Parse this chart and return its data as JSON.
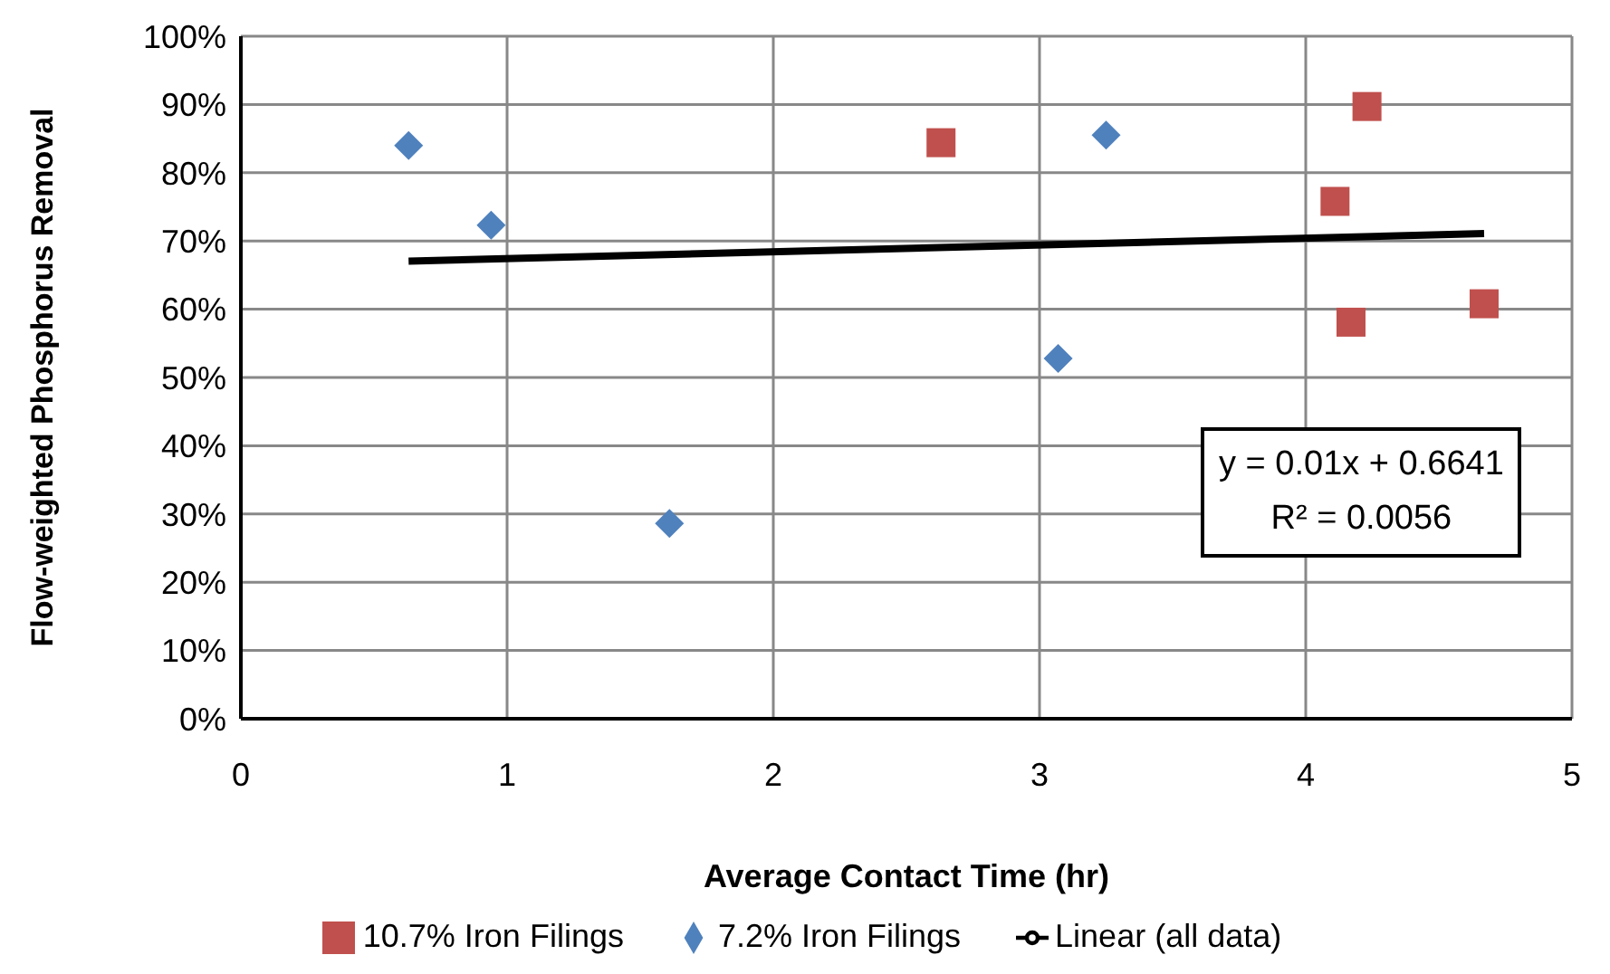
{
  "chart_data": {
    "type": "scatter",
    "xlabel": "Average Contact Time (hr)",
    "ylabel": "Flow-weighted Phosphorus  Removal",
    "xlim": [
      0,
      5
    ],
    "xticks": [
      0,
      1,
      2,
      3,
      4,
      5
    ],
    "ylim": [
      0,
      100
    ],
    "yticks": [
      {
        "value": 0,
        "label": "0%"
      },
      {
        "value": 10,
        "label": "10%"
      },
      {
        "value": 20,
        "label": "20%"
      },
      {
        "value": 30,
        "label": "30%"
      },
      {
        "value": 40,
        "label": "40%"
      },
      {
        "value": 50,
        "label": "50%"
      },
      {
        "value": 60,
        "label": "60%"
      },
      {
        "value": 70,
        "label": "70%"
      },
      {
        "value": 80,
        "label": "80%"
      },
      {
        "value": 90,
        "label": "90%"
      },
      {
        "value": 100,
        "label": "100%"
      }
    ],
    "grid": true,
    "legend": "bottom",
    "series": [
      {
        "name": "7.2% Iron Filings",
        "color": "#4f81bd",
        "marker": "diamond",
        "x": [
          0.63,
          0.94,
          1.61,
          3.07,
          3.25
        ],
        "values": [
          84,
          72.3,
          28.6,
          52.8,
          85.5
        ]
      },
      {
        "name": "10.7% Iron Filings",
        "color": "#c0504d",
        "marker": "square",
        "x": [
          2.63,
          4.11,
          4.23,
          4.17,
          4.67
        ],
        "values": [
          84.4,
          75.8,
          89.7,
          58.1,
          60.8
        ]
      },
      {
        "name": "Linear (all data)",
        "type": "line",
        "color": "#000000",
        "marker": "none",
        "x": [
          0.63,
          4.67
        ],
        "values": [
          67.04,
          71.08
        ]
      }
    ],
    "annotations": [
      "y = 0.01x + 0.6641",
      "R² = 0.0056"
    ]
  }
}
